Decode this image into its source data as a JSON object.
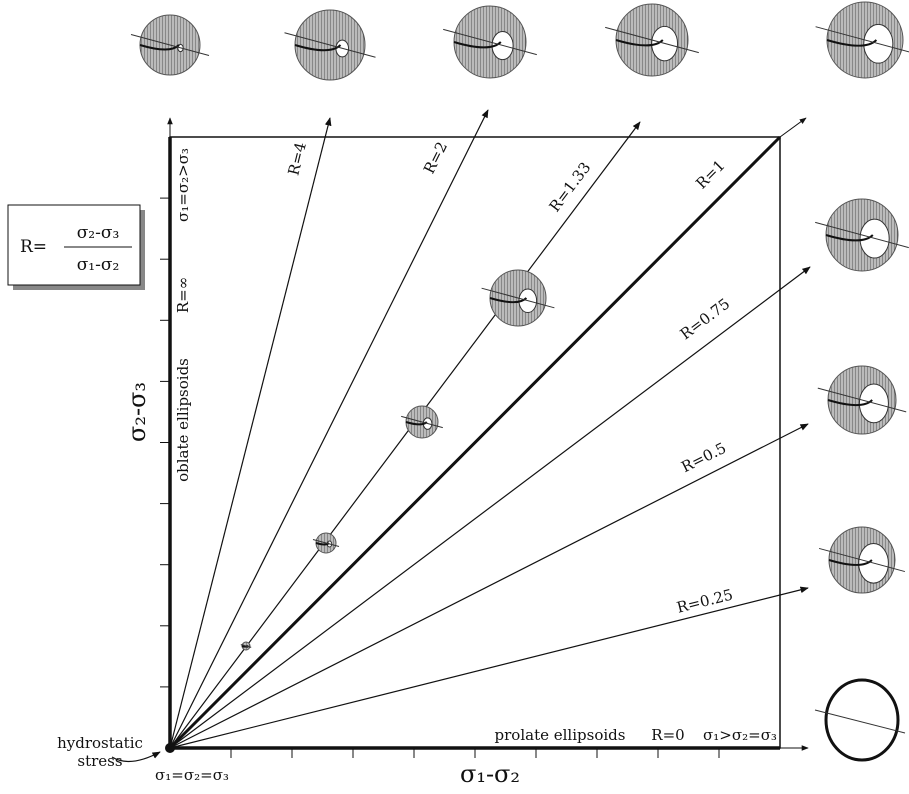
{
  "formula": {
    "lhs": "R=",
    "numerator": "σ₂-σ₃",
    "denominator": "σ₁-σ₂"
  },
  "axes": {
    "x_label": "σ₁-σ₂",
    "y_label": "σ₂-σ₃"
  },
  "rays": [
    {
      "label": "R=4"
    },
    {
      "label": "R=2"
    },
    {
      "label": "R=1.33"
    },
    {
      "label": "R=1"
    },
    {
      "label": "R=0.75"
    },
    {
      "label": "R=0.5"
    },
    {
      "label": "R=0.25"
    },
    {
      "label": "R=0"
    }
  ],
  "left_side": {
    "top": "σ₁=σ₂>σ₃",
    "infinity": "R=∞",
    "oblate": "oblate ellipsoids"
  },
  "bottom_side": {
    "prolate": "prolate ellipsoids",
    "condition": "σ₁>σ₂=σ₃",
    "origin": "σ₁=σ₂=σ₃"
  },
  "hydrostatic": [
    "hydrostatic",
    "stress"
  ]
}
